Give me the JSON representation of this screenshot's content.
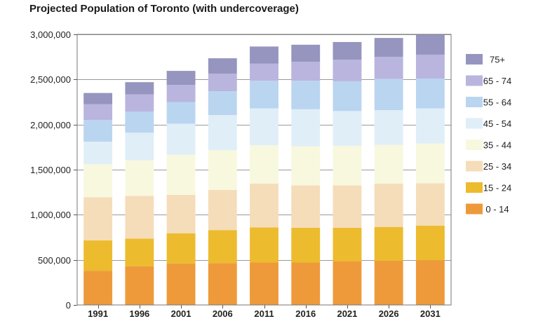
{
  "chart_data": {
    "type": "bar",
    "stacked": true,
    "title": "Projected Population of Toronto (with undercoverage)",
    "xlabel": "",
    "ylabel": "",
    "categories": [
      "1991",
      "1996",
      "2001",
      "2006",
      "2011",
      "2016",
      "2021",
      "2026",
      "2031"
    ],
    "ylim": [
      0,
      3000000
    ],
    "yticks": [
      0,
      500000,
      1000000,
      1500000,
      2000000,
      2500000,
      3000000
    ],
    "ytick_labels": [
      "0",
      "500,000",
      "1,000,000",
      "1,500,000",
      "2,000,000",
      "2,500,000",
      "3,000,000"
    ],
    "grid": true,
    "legend_position": "right",
    "series": [
      {
        "name": "0 - 14",
        "color": "#EE9A3A",
        "values": [
          380000,
          430000,
          460000,
          465000,
          470000,
          470000,
          485000,
          490000,
          495000
        ]
      },
      {
        "name": "15 - 24",
        "color": "#EDBB2E",
        "values": [
          335000,
          305000,
          335000,
          365000,
          390000,
          385000,
          370000,
          375000,
          385000
        ]
      },
      {
        "name": "25 - 34",
        "color": "#F5DDBA",
        "values": [
          480000,
          475000,
          425000,
          445000,
          485000,
          470000,
          470000,
          480000,
          470000
        ]
      },
      {
        "name": "35 - 44",
        "color": "#F8F8DF",
        "values": [
          365000,
          395000,
          445000,
          440000,
          425000,
          435000,
          440000,
          430000,
          440000
        ]
      },
      {
        "name": "45 - 54",
        "color": "#E0EEF8",
        "values": [
          250000,
          305000,
          345000,
          390000,
          410000,
          410000,
          385000,
          385000,
          390000
        ]
      },
      {
        "name": "55 - 64",
        "color": "#BAD5F0",
        "values": [
          240000,
          235000,
          240000,
          265000,
          305000,
          315000,
          330000,
          345000,
          330000
        ]
      },
      {
        "name": "65 - 74",
        "color": "#B9B5DE",
        "values": [
          175000,
          190000,
          190000,
          195000,
          190000,
          210000,
          240000,
          245000,
          265000
        ]
      },
      {
        "name": "75+",
        "color": "#9595BF",
        "values": [
          125000,
          135000,
          155000,
          170000,
          190000,
          190000,
          195000,
          210000,
          225000
        ]
      }
    ]
  }
}
